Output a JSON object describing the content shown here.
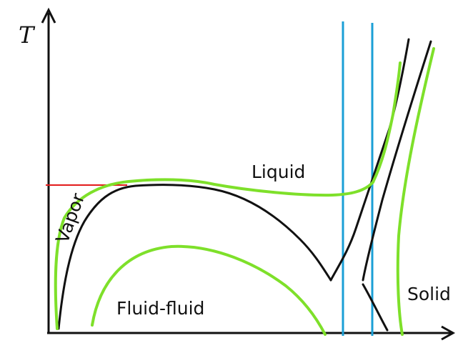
{
  "axes": {
    "y_label": "T"
  },
  "labels": {
    "liquid": "Liquid",
    "vapor": "Vapor",
    "fluid_fluid": "Fluid-fluid",
    "solid": "Solid"
  },
  "colors": {
    "axis": "#111111",
    "black_curves": "#111111",
    "green_curves": "#7ee02a",
    "blue_lines": "#1a9fd6",
    "red_line": "#e21b1b"
  }
}
